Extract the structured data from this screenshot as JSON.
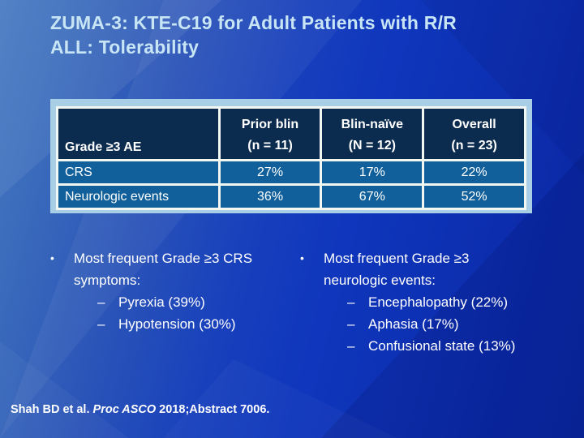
{
  "title": {
    "line1": "ZUMA-3: KTE-C19 for Adult Patients with R/R",
    "line2": "ALL: Tolerability"
  },
  "table": {
    "row_header_label": "Grade ≥3 AE",
    "columns": [
      {
        "line1": "Prior blin",
        "line2": "(n = 11)"
      },
      {
        "line1": "Blin-naïve",
        "line2": "(N = 12)"
      },
      {
        "line1": "Overall",
        "line2": "(n = 23)"
      }
    ],
    "rows": [
      {
        "label": "CRS",
        "values": [
          "27%",
          "17%",
          "22%"
        ]
      },
      {
        "label": "Neurologic events",
        "values": [
          "36%",
          "67%",
          "52%"
        ]
      }
    ]
  },
  "bullets": {
    "marker": "•",
    "sub_marker": "–",
    "left": {
      "text": "Most frequent Grade ≥3 CRS symptoms:",
      "subs": [
        "Pyrexia (39%)",
        "Hypotension (30%)"
      ]
    },
    "right": {
      "text": "Most frequent Grade ≥3 neurologic events:",
      "subs": [
        "Encephalopathy (22%)",
        "Aphasia (17%)",
        "Confusional state (13%)"
      ]
    }
  },
  "footer": {
    "prefix": "Shah BD et al. ",
    "italic": "Proc ASCO",
    "suffix": " 2018;Abstract 7006."
  },
  "colors": {
    "title_text": "#c7e5f5",
    "table_frame": "#a9cfe6",
    "table_border": "#f3f7f2",
    "table_header_bg": "#0c2c4f",
    "table_row_bg": "#11609b",
    "body_text": "#ffffff",
    "background_light": "#4679c2",
    "background_dark": "#0a27a0"
  }
}
